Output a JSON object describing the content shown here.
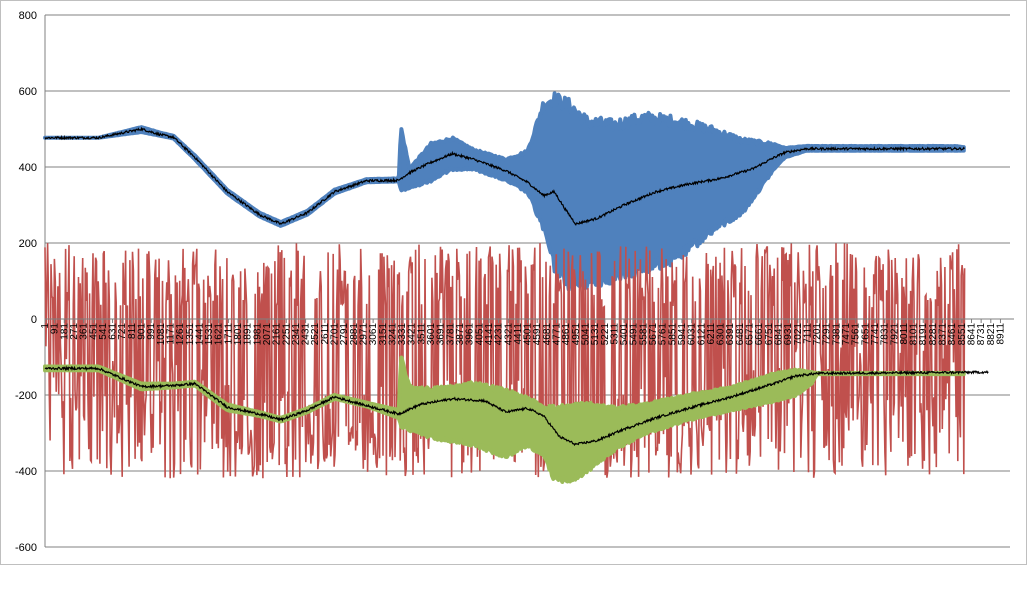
{
  "chart_data": {
    "type": "line",
    "title": "",
    "xlabel": "",
    "ylabel": "",
    "ylim": [
      -600,
      800
    ],
    "y_ticks": [
      800,
      600,
      400,
      200,
      0,
      -200,
      -400,
      -600
    ],
    "x_range": [
      1,
      9000
    ],
    "x_ticks": [
      "1",
      "91",
      "181",
      "271",
      "361",
      "451",
      "541",
      "631",
      "721",
      "811",
      "901",
      "991",
      "1081",
      "1171",
      "1261",
      "1351",
      "1441",
      "1531",
      "1621",
      "1711",
      "1801",
      "1891",
      "1981",
      "2071",
      "2161",
      "2251",
      "2341",
      "2431",
      "2521",
      "2611",
      "2701",
      "2791",
      "2881",
      "2971",
      "3061",
      "3151",
      "3241",
      "3331",
      "3421",
      "3511",
      "3601",
      "3691",
      "3781",
      "3871",
      "3961",
      "4051",
      "4141",
      "4231",
      "4321",
      "4411",
      "4501",
      "4591",
      "4681",
      "4771",
      "4861",
      "4951",
      "5041",
      "5131",
      "5221",
      "5311",
      "5401",
      "5491",
      "5581",
      "5671",
      "5761",
      "5851",
      "5941",
      "6031",
      "6121",
      "6211",
      "6301",
      "6391",
      "6481",
      "6571",
      "6661",
      "6751",
      "6841",
      "6931",
      "7021",
      "7111",
      "7201",
      "7291",
      "7381",
      "7471",
      "7561",
      "7651",
      "7741",
      "7831",
      "7921",
      "8011",
      "8101",
      "8191",
      "8281",
      "8371",
      "8461",
      "8551",
      "8641",
      "8731",
      "8821",
      "8911"
    ],
    "grid": true,
    "legend": "none",
    "colors": {
      "blue_band": "#4f81bd",
      "red_series": "#c0504d",
      "green_band": "#9bbb59",
      "black_line": "#000000",
      "gridline": "#808080"
    },
    "series": [
      {
        "style": "band",
        "color": "#4f81bd",
        "points": [
          [
            1,
            477,
            477
          ],
          [
            500,
            477,
            477
          ],
          [
            900,
            492,
            505
          ],
          [
            1080,
            482,
            490
          ],
          [
            1200,
            475,
            482
          ],
          [
            1400,
            420,
            430
          ],
          [
            1700,
            330,
            340
          ],
          [
            2000,
            270,
            280
          ],
          [
            2200,
            245,
            255
          ],
          [
            2450,
            275,
            285
          ],
          [
            2700,
            330,
            340
          ],
          [
            3000,
            360,
            368
          ],
          [
            3300,
            362,
            370
          ],
          [
            3320,
            340,
            505
          ],
          [
            3400,
            345,
            395
          ],
          [
            3600,
            365,
            460
          ],
          [
            3800,
            395,
            475
          ],
          [
            4000,
            395,
            445
          ],
          [
            4300,
            365,
            420
          ],
          [
            4500,
            335,
            440
          ],
          [
            4650,
            240,
            565
          ],
          [
            4750,
            140,
            580
          ],
          [
            4900,
            90,
            560
          ],
          [
            5050,
            95,
            520
          ],
          [
            5300,
            110,
            510
          ],
          [
            5600,
            135,
            530
          ],
          [
            5900,
            160,
            520
          ],
          [
            6200,
            230,
            500
          ],
          [
            6500,
            280,
            470
          ],
          [
            6800,
            395,
            460
          ],
          [
            6900,
            425,
            450
          ],
          [
            7100,
            443,
            455
          ],
          [
            8000,
            443,
            455
          ],
          [
            8500,
            443,
            455
          ],
          [
            8580,
            443,
            452
          ]
        ]
      },
      {
        "style": "line",
        "color": "#000000",
        "points": [
          [
            1,
            477
          ],
          [
            500,
            477
          ],
          [
            900,
            500
          ],
          [
            1080,
            485
          ],
          [
            1200,
            478
          ],
          [
            1400,
            425
          ],
          [
            1700,
            335
          ],
          [
            2000,
            275
          ],
          [
            2200,
            250
          ],
          [
            2450,
            280
          ],
          [
            2700,
            335
          ],
          [
            3000,
            364
          ],
          [
            3300,
            365
          ],
          [
            3320,
            370
          ],
          [
            3400,
            385
          ],
          [
            3600,
            412
          ],
          [
            3800,
            435
          ],
          [
            4000,
            420
          ],
          [
            4300,
            390
          ],
          [
            4500,
            360
          ],
          [
            4650,
            325
          ],
          [
            4750,
            335
          ],
          [
            4850,
            290
          ],
          [
            4950,
            250
          ],
          [
            5150,
            265
          ],
          [
            5400,
            300
          ],
          [
            5700,
            335
          ],
          [
            6000,
            355
          ],
          [
            6300,
            370
          ],
          [
            6600,
            395
          ],
          [
            6800,
            425
          ],
          [
            6900,
            438
          ],
          [
            7100,
            448
          ],
          [
            8580,
            448
          ]
        ]
      },
      {
        "style": "noisy",
        "color": "#c0504d",
        "noise_low": -400,
        "noise_high": 200,
        "points": [
          [
            1,
            -130
          ],
          [
            500,
            -130
          ],
          [
            900,
            -175
          ],
          [
            1200,
            -180
          ],
          [
            1400,
            -170
          ],
          [
            1700,
            -230
          ],
          [
            2000,
            -250
          ],
          [
            2200,
            -270
          ],
          [
            2450,
            -240
          ],
          [
            2700,
            -205
          ],
          [
            3000,
            -225
          ],
          [
            3300,
            -245
          ],
          [
            3400,
            -230
          ],
          [
            3700,
            -210
          ],
          [
            4000,
            -215
          ],
          [
            4300,
            -245
          ],
          [
            4500,
            -240
          ],
          [
            4700,
            -280
          ],
          [
            4900,
            -320
          ],
          [
            5100,
            -310
          ],
          [
            5400,
            -260
          ],
          [
            5700,
            -240
          ],
          [
            6000,
            -215
          ],
          [
            6400,
            -195
          ],
          [
            6800,
            -165
          ],
          [
            7100,
            -150
          ],
          [
            8580,
            -140
          ]
        ]
      },
      {
        "style": "band",
        "color": "#9bbb59",
        "points": [
          [
            1,
            -135,
            -125
          ],
          [
            500,
            -135,
            -125
          ],
          [
            900,
            -185,
            -170
          ],
          [
            1200,
            -180,
            -170
          ],
          [
            1400,
            -175,
            -165
          ],
          [
            1700,
            -240,
            -225
          ],
          [
            2000,
            -255,
            -245
          ],
          [
            2200,
            -270,
            -260
          ],
          [
            2450,
            -245,
            -235
          ],
          [
            2700,
            -210,
            -200
          ],
          [
            3000,
            -230,
            -220
          ],
          [
            3300,
            -260,
            -240
          ],
          [
            3320,
            -280,
            -100
          ],
          [
            3400,
            -290,
            -180
          ],
          [
            3600,
            -310,
            -185
          ],
          [
            3800,
            -320,
            -180
          ],
          [
            4000,
            -330,
            -170
          ],
          [
            4300,
            -360,
            -190
          ],
          [
            4500,
            -330,
            -210
          ],
          [
            4650,
            -360,
            -230
          ],
          [
            4750,
            -420,
            -235
          ],
          [
            4900,
            -425,
            -230
          ],
          [
            5050,
            -400,
            -225
          ],
          [
            5300,
            -345,
            -235
          ],
          [
            5600,
            -300,
            -225
          ],
          [
            6000,
            -265,
            -200
          ],
          [
            6400,
            -240,
            -180
          ],
          [
            6800,
            -215,
            -145
          ],
          [
            7000,
            -200,
            -135
          ],
          [
            7150,
            -170,
            -140
          ],
          [
            7200,
            -145,
            -142
          ],
          [
            8580,
            -145,
            -142
          ]
        ]
      },
      {
        "style": "line",
        "color": "#000000",
        "points": [
          [
            1,
            -130
          ],
          [
            500,
            -130
          ],
          [
            900,
            -178
          ],
          [
            1200,
            -175
          ],
          [
            1400,
            -170
          ],
          [
            1700,
            -232
          ],
          [
            2000,
            -250
          ],
          [
            2200,
            -265
          ],
          [
            2450,
            -240
          ],
          [
            2700,
            -205
          ],
          [
            3000,
            -228
          ],
          [
            3300,
            -250
          ],
          [
            3500,
            -225
          ],
          [
            3800,
            -210
          ],
          [
            4100,
            -215
          ],
          [
            4300,
            -245
          ],
          [
            4500,
            -235
          ],
          [
            4650,
            -255
          ],
          [
            4800,
            -310
          ],
          [
            4950,
            -330
          ],
          [
            5150,
            -320
          ],
          [
            5400,
            -290
          ],
          [
            5700,
            -260
          ],
          [
            6000,
            -235
          ],
          [
            6400,
            -205
          ],
          [
            6800,
            -170
          ],
          [
            7000,
            -150
          ],
          [
            7200,
            -143
          ],
          [
            8800,
            -140
          ]
        ]
      }
    ]
  }
}
